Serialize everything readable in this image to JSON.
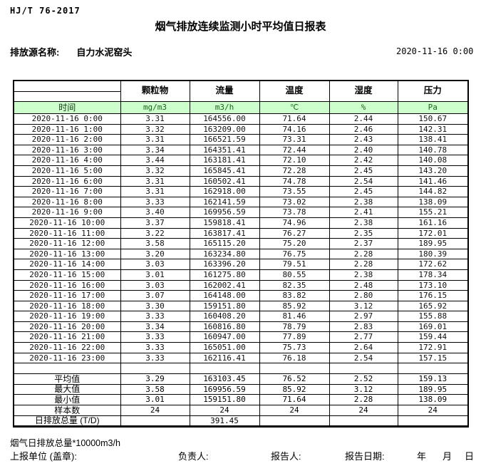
{
  "page": {
    "doc_code": "HJ/T 76-2017",
    "title": "烟气排放连续监测小时平均值日报表",
    "source_label": "排放源名称:",
    "source_name": "自力水泥窑头",
    "report_datetime": "2020-11-16 0:00"
  },
  "table": {
    "time_header": "时间",
    "pollutant_headers": [
      "颗粒物",
      "流量",
      "温度",
      "湿度",
      "压力"
    ],
    "unit_headers": [
      "mg/m3",
      "m3/h",
      "℃",
      "%",
      "Pa"
    ],
    "rows": [
      {
        "time": "2020-11-16 0:00",
        "values": [
          "3.31",
          "164556.00",
          "71.64",
          "2.44",
          "150.67"
        ]
      },
      {
        "time": "2020-11-16 1:00",
        "values": [
          "3.32",
          "163209.00",
          "74.16",
          "2.46",
          "142.31"
        ]
      },
      {
        "time": "2020-11-16 2:00",
        "values": [
          "3.31",
          "166521.59",
          "73.31",
          "2.43",
          "138.41"
        ]
      },
      {
        "time": "2020-11-16 3:00",
        "values": [
          "3.34",
          "164351.41",
          "72.44",
          "2.40",
          "140.78"
        ]
      },
      {
        "time": "2020-11-16 4:00",
        "values": [
          "3.44",
          "163181.41",
          "72.10",
          "2.42",
          "140.08"
        ]
      },
      {
        "time": "2020-11-16 5:00",
        "values": [
          "3.32",
          "165845.41",
          "72.28",
          "2.45",
          "143.20"
        ]
      },
      {
        "time": "2020-11-16 6:00",
        "values": [
          "3.31",
          "160502.41",
          "74.78",
          "2.54",
          "141.46"
        ]
      },
      {
        "time": "2020-11-16 7:00",
        "values": [
          "3.31",
          "162918.00",
          "73.55",
          "2.45",
          "144.82"
        ]
      },
      {
        "time": "2020-11-16 8:00",
        "values": [
          "3.33",
          "162141.59",
          "73.02",
          "2.38",
          "138.09"
        ]
      },
      {
        "time": "2020-11-16 9:00",
        "values": [
          "3.40",
          "169956.59",
          "73.78",
          "2.41",
          "155.21"
        ]
      },
      {
        "time": "2020-11-16 10:00",
        "values": [
          "3.37",
          "159818.41",
          "74.96",
          "2.38",
          "161.16"
        ]
      },
      {
        "time": "2020-11-16 11:00",
        "values": [
          "3.22",
          "163817.41",
          "76.27",
          "2.35",
          "172.01"
        ]
      },
      {
        "time": "2020-11-16 12:00",
        "values": [
          "3.58",
          "165115.20",
          "75.20",
          "2.37",
          "189.95"
        ]
      },
      {
        "time": "2020-11-16 13:00",
        "values": [
          "3.20",
          "163234.80",
          "76.75",
          "2.28",
          "180.39"
        ]
      },
      {
        "time": "2020-11-16 14:00",
        "values": [
          "3.03",
          "163396.20",
          "79.51",
          "2.28",
          "172.62"
        ]
      },
      {
        "time": "2020-11-16 15:00",
        "values": [
          "3.01",
          "161275.80",
          "80.55",
          "2.38",
          "178.34"
        ]
      },
      {
        "time": "2020-11-16 16:00",
        "values": [
          "3.03",
          "162002.41",
          "82.35",
          "2.48",
          "173.10"
        ]
      },
      {
        "time": "2020-11-16 17:00",
        "values": [
          "3.07",
          "164148.00",
          "83.82",
          "2.80",
          "176.15"
        ]
      },
      {
        "time": "2020-11-16 18:00",
        "values": [
          "3.30",
          "159151.80",
          "85.92",
          "3.12",
          "165.92"
        ]
      },
      {
        "time": "2020-11-16 19:00",
        "values": [
          "3.33",
          "160408.20",
          "81.46",
          "2.97",
          "155.88"
        ]
      },
      {
        "time": "2020-11-16 20:00",
        "values": [
          "3.34",
          "160816.80",
          "78.79",
          "2.83",
          "169.01"
        ]
      },
      {
        "time": "2020-11-16 21:00",
        "values": [
          "3.33",
          "160947.00",
          "77.89",
          "2.77",
          "159.44"
        ]
      },
      {
        "time": "2020-11-16 22:00",
        "values": [
          "3.33",
          "165051.00",
          "75.73",
          "2.64",
          "172.91"
        ]
      },
      {
        "time": "2020-11-16 23:00",
        "values": [
          "3.33",
          "162116.41",
          "76.18",
          "2.54",
          "157.15"
        ]
      }
    ],
    "summary": [
      {
        "label": "平均值",
        "values": [
          "3.29",
          "163103.45",
          "76.52",
          "2.52",
          "159.13"
        ]
      },
      {
        "label": "最大值",
        "values": [
          "3.58",
          "169956.59",
          "85.92",
          "3.12",
          "189.95"
        ]
      },
      {
        "label": "最小值",
        "values": [
          "3.01",
          "159151.80",
          "71.64",
          "2.28",
          "138.09"
        ]
      },
      {
        "label": "样本数",
        "values": [
          "24",
          "24",
          "24",
          "24",
          "24"
        ]
      },
      {
        "label": "日排放总量 (T/D)",
        "values": [
          "",
          "391.45",
          "",
          "",
          ""
        ]
      }
    ]
  },
  "footer": {
    "note": "烟气日排放总量*10000m3/h",
    "unit_label": "上报单位 (盖章):",
    "responsible_label": "负责人:",
    "reporter_label": "报告人:",
    "report_date_label": "报告日期:",
    "year_label": "年",
    "month_label": "月",
    "day_label": "日"
  },
  "colors": {
    "header_bg": "#ccffcc",
    "header_unit_text": "#1a661a"
  }
}
